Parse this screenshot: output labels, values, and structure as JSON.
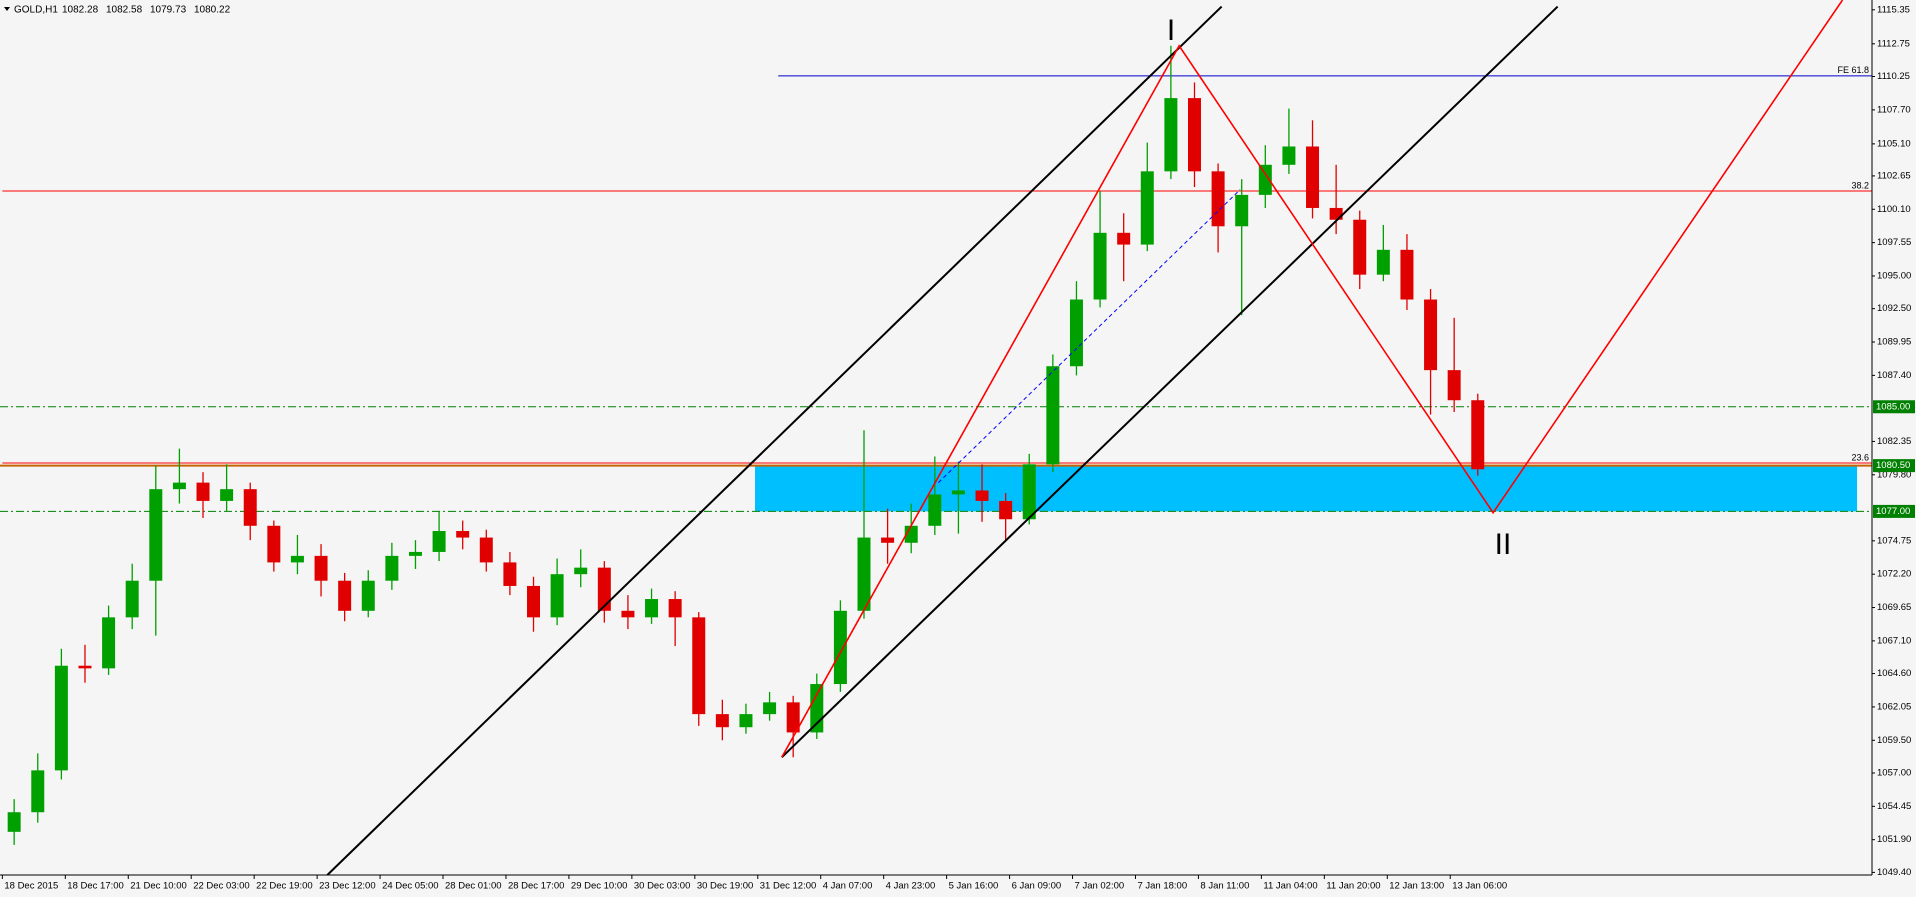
{
  "chart_data": {
    "type": "candlestick",
    "symbol": "GOLD,H1",
    "ohlc": [
      1082.28,
      1082.58,
      1079.73,
      1080.22
    ],
    "xlim": [
      -0.6,
      475.2
    ],
    "ylim": [
      1049.2,
      1116.1
    ],
    "xticks": [
      {
        "value": 0,
        "label": "18 Dec 2015"
      },
      {
        "value": 16,
        "label": "18 Dec 17:00"
      },
      {
        "value": 32,
        "label": "21 Dec 10:00"
      },
      {
        "value": 48,
        "label": "22 Dec 03:00"
      },
      {
        "value": 64,
        "label": "22 Dec 19:00"
      },
      {
        "value": 80,
        "label": "23 Dec 12:00"
      },
      {
        "value": 96,
        "label": "24 Dec 05:00"
      },
      {
        "value": 112,
        "label": "28 Dec 01:00"
      },
      {
        "value": 128,
        "label": "28 Dec 17:00"
      },
      {
        "value": 144,
        "label": "29 Dec 10:00"
      },
      {
        "value": 160,
        "label": "30 Dec 03:00"
      },
      {
        "value": 176,
        "label": "30 Dec 19:00"
      },
      {
        "value": 192,
        "label": "31 Dec 12:00"
      },
      {
        "value": 208,
        "label": "4 Jan 07:00"
      },
      {
        "value": 224,
        "label": "4 Jan 23:00"
      },
      {
        "value": 240,
        "label": "5 Jan 16:00"
      },
      {
        "value": 256,
        "label": "6 Jan 09:00"
      },
      {
        "value": 272,
        "label": "7 Jan 02:00"
      },
      {
        "value": 288,
        "label": "7 Jan 18:00"
      },
      {
        "value": 304,
        "label": "8 Jan 11:00"
      },
      {
        "value": 320,
        "label": "11 Jan 04:00"
      },
      {
        "value": 336,
        "label": "11 Jan 20:00"
      },
      {
        "value": 352,
        "label": "12 Jan 13:00"
      },
      {
        "value": 368,
        "label": "13 Jan 06:00"
      }
    ],
    "yticks": [
      1115.35,
      1112.75,
      1110.25,
      {
        "value": 1107.7,
        "label": "1107.70"
      },
      {
        "value": 1105.1,
        "label": "1105.10"
      },
      1102.65,
      {
        "value": 1100.1,
        "label": "1100.10"
      },
      1097.55,
      {
        "value": 1095,
        "label": "1095.00"
      },
      {
        "value": 1092.5,
        "label": "1092.50"
      },
      1089.95,
      {
        "value": 1087.4,
        "label": "1087.40"
      },
      1082.35,
      {
        "value": 1079.8,
        "label": "1079.80"
      },
      1074.75,
      {
        "value": 1072.2,
        "label": "1072.20"
      },
      1069.65,
      {
        "value": 1067.1,
        "label": "1067.10"
      },
      {
        "value": 1064.6,
        "label": "1064.60"
      },
      1062.05,
      {
        "value": 1059.5,
        "label": "1059.50"
      },
      {
        "value": 1057,
        "label": "1057.00"
      },
      1054.45,
      {
        "value": 1051.9,
        "label": "1051.90"
      },
      {
        "value": 1049.4,
        "label": "1049.40"
      }
    ],
    "up_color": "#00a000",
    "down_color": "#e00000",
    "candles": {
      "x": [
        3,
        9,
        15,
        21,
        27,
        33,
        39,
        45,
        51,
        57,
        63,
        69,
        75,
        81,
        87,
        93,
        99,
        105,
        111,
        117,
        123,
        129,
        135,
        141,
        147,
        153,
        159,
        165,
        171,
        177,
        183,
        189,
        195,
        201,
        207,
        213,
        219,
        225,
        231,
        237,
        243,
        249,
        255,
        261,
        267,
        273,
        279,
        285,
        291,
        297,
        303,
        309,
        315,
        321,
        327,
        333,
        339,
        345,
        351,
        357,
        363,
        369,
        375
      ],
      "open": [
        1052.5,
        1054.0,
        1057.2,
        1065.2,
        1065.0,
        1068.9,
        1071.7,
        1078.7,
        1079.2,
        1077.8,
        1078.7,
        1075.9,
        1073.1,
        1073.6,
        1071.7,
        1069.4,
        1071.7,
        1073.6,
        1073.9,
        1075.5,
        1075.0,
        1073.1,
        1071.3,
        1068.9,
        1072.2,
        1072.7,
        1069.4,
        1068.9,
        1070.3,
        1068.9,
        1061.5,
        1060.5,
        1061.5,
        1062.4,
        1060.1,
        1063.8,
        1069.4,
        1075.0,
        1074.6,
        1075.9,
        1078.3,
        1078.6,
        1077.8,
        1076.4,
        1080.6,
        1088.1,
        1093.2,
        1098.3,
        1097.4,
        1103.0,
        1108.6,
        1103.0,
        1098.8,
        1101.2,
        1103.5,
        1104.9,
        1100.2,
        1099.3,
        1095.1,
        1097.0,
        1093.2,
        1087.8,
        1085.5
      ],
      "high": [
        1055.0,
        1058.5,
        1066.5,
        1066.8,
        1069.8,
        1073.0,
        1080.5,
        1081.8,
        1080.0,
        1080.6,
        1079.2,
        1076.3,
        1075.2,
        1074.5,
        1072.3,
        1072.5,
        1074.6,
        1074.8,
        1077.0,
        1076.3,
        1075.6,
        1073.9,
        1072.0,
        1073.4,
        1074.1,
        1073.2,
        1070.6,
        1071.1,
        1070.9,
        1069.3,
        1062.6,
        1062.3,
        1063.2,
        1062.9,
        1064.6,
        1070.2,
        1083.2,
        1077.2,
        1077.6,
        1081.2,
        1080.8,
        1080.6,
        1078.4,
        1081.4,
        1089.0,
        1094.6,
        1101.5,
        1099.8,
        1105.2,
        1112.6,
        1109.8,
        1103.6,
        1102.4,
        1105.0,
        1107.8,
        1106.9,
        1103.5,
        1100.0,
        1098.9,
        1098.2,
        1094.0,
        1091.8,
        1086.0
      ],
      "low": [
        1051.5,
        1053.2,
        1056.5,
        1063.9,
        1064.5,
        1068.0,
        1067.5,
        1077.6,
        1076.5,
        1077.0,
        1074.8,
        1072.4,
        1072.2,
        1070.5,
        1068.6,
        1068.9,
        1071.0,
        1072.6,
        1073.2,
        1074.1,
        1072.4,
        1070.6,
        1067.8,
        1068.3,
        1071.2,
        1068.5,
        1068.0,
        1068.4,
        1066.7,
        1060.6,
        1059.5,
        1060.0,
        1061.0,
        1058.2,
        1059.6,
        1063.2,
        1068.8,
        1073.0,
        1073.8,
        1075.2,
        1075.3,
        1076.2,
        1074.7,
        1076.0,
        1080.0,
        1087.4,
        1092.6,
        1094.6,
        1096.9,
        1102.4,
        1101.8,
        1096.8,
        1092.0,
        1100.2,
        1102.8,
        1099.4,
        1098.2,
        1094.0,
        1094.6,
        1092.4,
        1084.4,
        1084.6,
        1079.73
      ],
      "close": [
        1054.0,
        1057.2,
        1065.2,
        1065.0,
        1068.9,
        1071.7,
        1078.7,
        1079.2,
        1077.8,
        1078.7,
        1075.9,
        1073.1,
        1073.6,
        1071.7,
        1069.4,
        1071.7,
        1073.6,
        1073.9,
        1075.5,
        1075.0,
        1073.1,
        1071.3,
        1068.9,
        1072.2,
        1072.7,
        1069.4,
        1068.9,
        1070.3,
        1068.9,
        1061.5,
        1060.5,
        1061.5,
        1062.4,
        1060.1,
        1063.8,
        1069.4,
        1075.0,
        1074.6,
        1075.9,
        1078.3,
        1078.6,
        1077.8,
        1076.4,
        1080.6,
        1088.1,
        1093.2,
        1098.3,
        1097.4,
        1103.0,
        1108.6,
        1103.0,
        1098.8,
        1101.2,
        1103.5,
        1104.9,
        1100.2,
        1099.3,
        1095.1,
        1097.0,
        1093.2,
        1087.8,
        1085.5,
        1080.22
      ]
    },
    "zone": {
      "x": [
        191.3,
        471.4
      ],
      "y": [
        1077.0,
        1080.5
      ],
      "color": "#00bfff"
    },
    "levels": [
      {
        "value": 1085,
        "label": "1085.00",
        "color": "#008000",
        "dash": "8 3 2 3",
        "width": 1
      },
      {
        "value": 1080.5,
        "label": "1080.50",
        "color": "#c86400",
        "dash": "",
        "width": 2
      },
      {
        "value": 1077,
        "label": "1077.00",
        "color": "#008000",
        "dash": "8 3 2 3",
        "width": 1
      }
    ],
    "fibo": [
      {
        "value": 1110.3,
        "start": 197.2,
        "label": "FE 61.8",
        "color": "#0000cc"
      },
      {
        "value": 1101.5,
        "start": 0,
        "label": "38.2",
        "color": "#ff0000"
      },
      {
        "value": 1080.7,
        "start": 0,
        "label": "23.6",
        "color": "#ff0000"
      }
    ],
    "lines": [
      {
        "x": [
          82.6,
          309.9
        ],
        "y": [
          1049.2,
          1115.6
        ],
        "color": "#000000",
        "width": 2,
        "dash": ""
      },
      {
        "x": [
          198.1,
          395.3
        ],
        "y": [
          1058.2,
          1115.6
        ],
        "color": "#000000",
        "width": 2,
        "dash": ""
      },
      {
        "x": [
          198.1,
          299.1,
          378.9,
          467.7
        ],
        "y": [
          1058.2,
          1112.6,
          1076.9,
          1116.1
        ],
        "color": "#ff0000",
        "width": 1.6,
        "dash": ""
      },
      {
        "x": [
          199.5,
          298.5
        ],
        "y": [
          1058.9,
          1112.3
        ],
        "color": "#ff0000",
        "width": 1,
        "dash": "2 2"
      },
      {
        "x": [
          237.9,
          314.6
        ],
        "y": [
          1079.2,
          1101.6
        ],
        "color": "#0000ff",
        "width": 1,
        "dash": "4 3"
      }
    ],
    "wave_labels": [
      "I",
      "II"
    ],
    "wave_color": "#1a1aff"
  }
}
